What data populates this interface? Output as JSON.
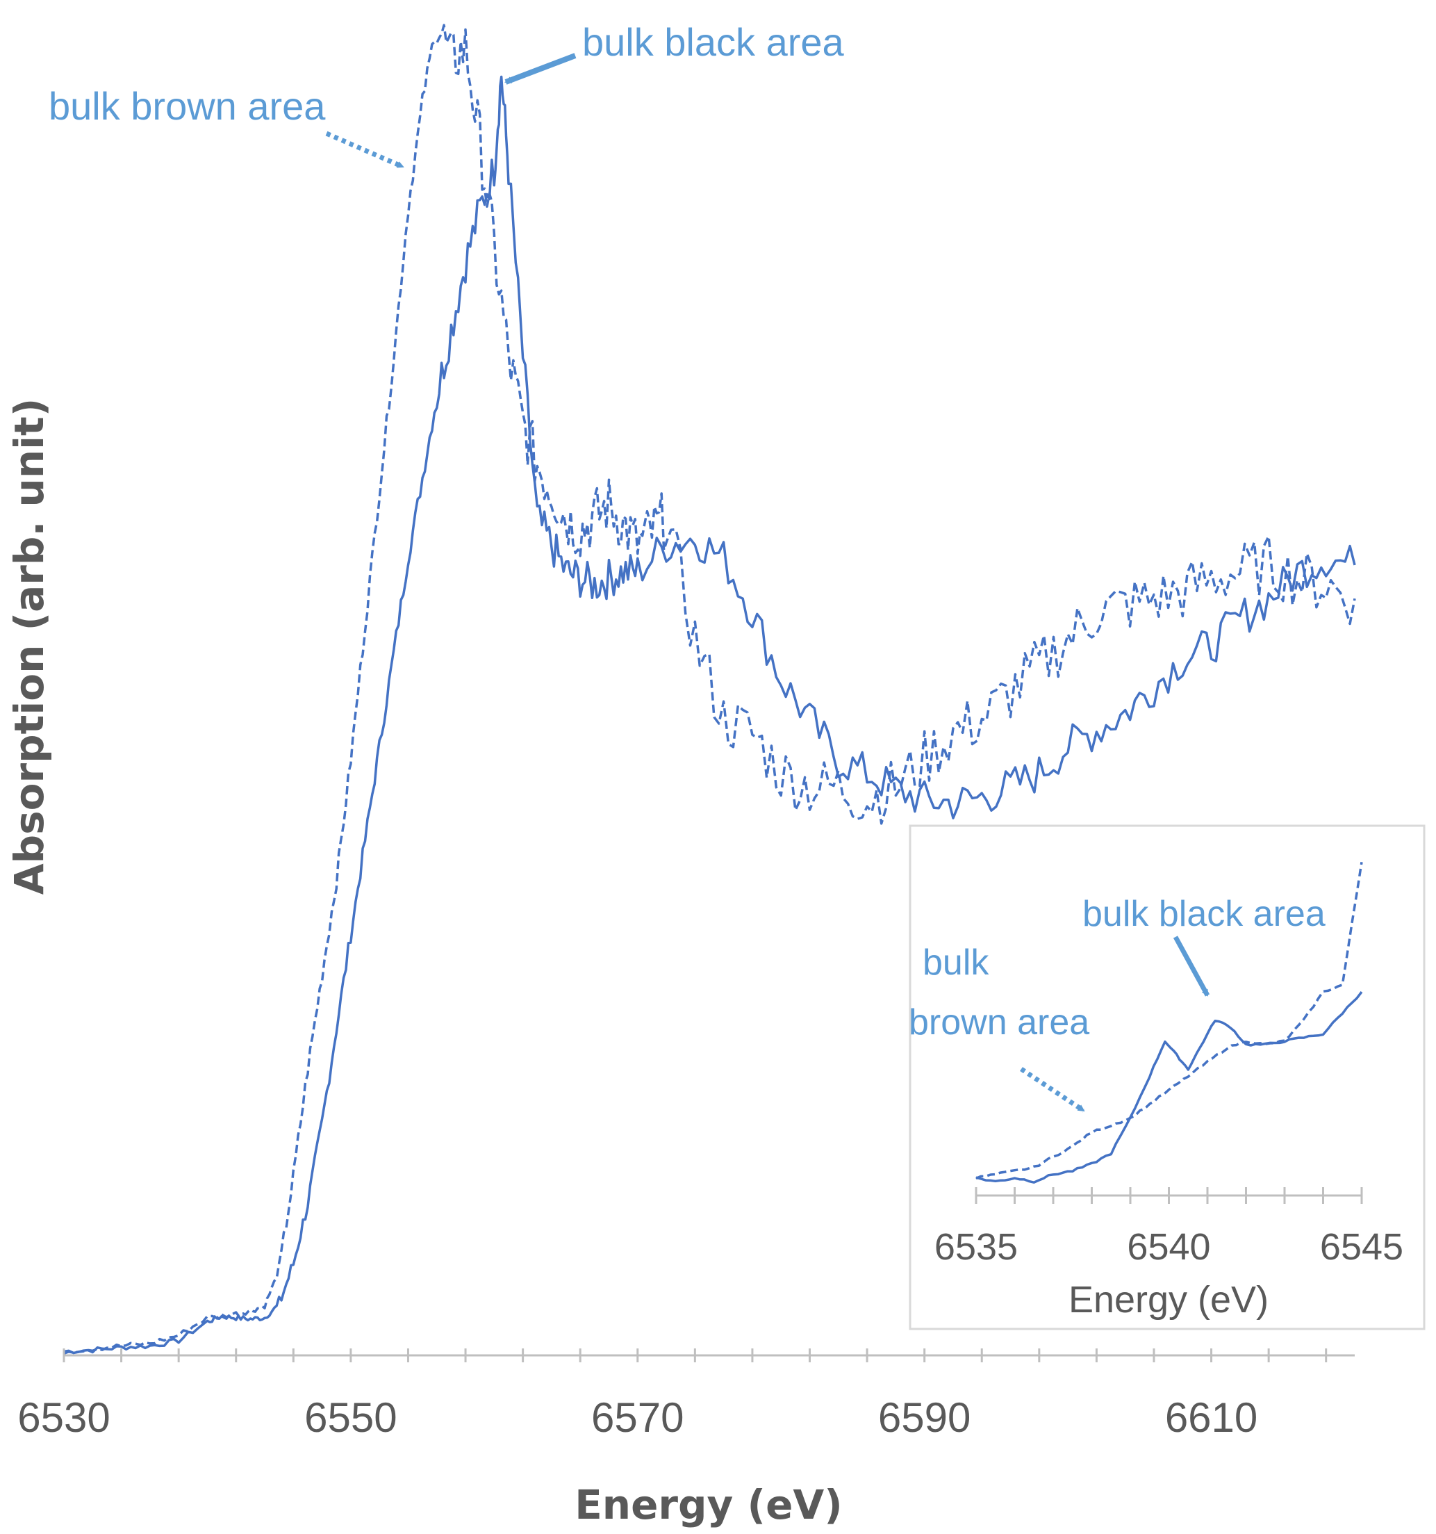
{
  "colors": {
    "series": "#4472c4",
    "annotation": "#5b9bd5",
    "axis": "#bfbfbf",
    "text": "#595959",
    "inset_border": "#d9d9d9"
  },
  "chart_data": [
    {
      "type": "line",
      "title": "",
      "xlabel": "Energy (eV)",
      "ylabel": "Absorption (arb. unit)",
      "xlim": [
        6530,
        6620
      ],
      "ylim": [
        0,
        1.0
      ],
      "x_ticks": [
        6530,
        6550,
        6570,
        6590,
        6610
      ],
      "y_ticks": [],
      "legend": "none",
      "grid": false,
      "series": [
        {
          "name": "bulk black area",
          "style": "solid",
          "x": [
            6530,
            6532,
            6534,
            6536,
            6538,
            6540,
            6541,
            6542,
            6543,
            6544,
            6545,
            6546,
            6547,
            6548,
            6549,
            6550,
            6551,
            6552,
            6553,
            6554,
            6555,
            6556,
            6557,
            6558,
            6559,
            6560,
            6560.5,
            6561,
            6562,
            6563,
            6564,
            6565,
            6566,
            6567,
            6568,
            6569,
            6570,
            6572,
            6574,
            6576,
            6578,
            6580,
            6582,
            6584,
            6586,
            6588,
            6590,
            6592,
            6594,
            6596,
            6598,
            6600,
            6602,
            6604,
            6606,
            6608,
            6610,
            6612,
            6614,
            6616,
            6618,
            6620
          ],
          "y": [
            0.0,
            0.001,
            0.003,
            0.004,
            0.008,
            0.022,
            0.026,
            0.025,
            0.024,
            0.025,
            0.035,
            0.065,
            0.11,
            0.17,
            0.24,
            0.31,
            0.38,
            0.45,
            0.52,
            0.59,
            0.65,
            0.71,
            0.76,
            0.81,
            0.85,
            0.88,
            0.95,
            0.88,
            0.74,
            0.62,
            0.6,
            0.58,
            0.575,
            0.57,
            0.575,
            0.58,
            0.58,
            0.6,
            0.605,
            0.59,
            0.55,
            0.5,
            0.47,
            0.44,
            0.43,
            0.418,
            0.41,
            0.408,
            0.412,
            0.42,
            0.43,
            0.45,
            0.462,
            0.475,
            0.495,
            0.515,
            0.525,
            0.545,
            0.56,
            0.58,
            0.59,
            0.585
          ]
        },
        {
          "name": "bulk brown area",
          "style": "dashed",
          "x": [
            6530,
            6532,
            6534,
            6536,
            6538,
            6540,
            6542,
            6543,
            6544,
            6545,
            6546,
            6547,
            6548,
            6549,
            6550,
            6551,
            6552,
            6553,
            6554,
            6555,
            6556,
            6557,
            6558,
            6559,
            6560,
            6561,
            6562,
            6563,
            6564,
            6565,
            6566,
            6567,
            6568,
            6569,
            6570,
            6571,
            6572,
            6574,
            6576,
            6578,
            6580,
            6582,
            6584,
            6586,
            6588,
            6590,
            6592,
            6594,
            6596,
            6598,
            6600,
            6602,
            6604,
            6606,
            6608,
            6610,
            6612,
            6614,
            6616,
            6618,
            6620
          ],
          "y": [
            0.0,
            0.002,
            0.004,
            0.006,
            0.012,
            0.025,
            0.028,
            0.03,
            0.034,
            0.06,
            0.13,
            0.21,
            0.28,
            0.35,
            0.44,
            0.54,
            0.64,
            0.74,
            0.85,
            0.93,
            0.99,
            0.96,
            0.97,
            0.9,
            0.82,
            0.74,
            0.69,
            0.66,
            0.64,
            0.62,
            0.61,
            0.62,
            0.63,
            0.615,
            0.6,
            0.61,
            0.62,
            0.53,
            0.47,
            0.46,
            0.43,
            0.42,
            0.42,
            0.41,
            0.42,
            0.44,
            0.46,
            0.47,
            0.49,
            0.51,
            0.53,
            0.55,
            0.555,
            0.56,
            0.565,
            0.575,
            0.58,
            0.585,
            0.575,
            0.57,
            0.56
          ]
        }
      ],
      "annotations": [
        {
          "text": "bulk black area",
          "arrow": "solid"
        },
        {
          "text": "bulk brown area",
          "arrow": "dotted"
        }
      ]
    },
    {
      "type": "line",
      "title": "",
      "inset": true,
      "xlabel": "Energy (eV)",
      "ylabel": "",
      "xlim": [
        6535,
        6545
      ],
      "x_ticks": [
        6535,
        6540,
        6545
      ],
      "series": [
        {
          "name": "bulk black area",
          "style": "solid",
          "x": [
            6535,
            6535.5,
            6536,
            6536.5,
            6537,
            6537.5,
            6538,
            6538.5,
            6539,
            6539.5,
            6539.9,
            6540.2,
            6540.5,
            6540.8,
            6541.2,
            6541.6,
            6542,
            6542.5,
            6543,
            6543.5,
            6544,
            6544.5,
            6545
          ],
          "y": [
            0.05,
            0.04,
            0.05,
            0.04,
            0.06,
            0.07,
            0.09,
            0.12,
            0.22,
            0.34,
            0.44,
            0.4,
            0.36,
            0.42,
            0.5,
            0.48,
            0.43,
            0.43,
            0.44,
            0.45,
            0.46,
            0.52,
            0.58
          ]
        },
        {
          "name": "bulk brown area",
          "style": "dashed",
          "x": [
            6535,
            6535.5,
            6536,
            6536.5,
            6537,
            6537.5,
            6538,
            6538.5,
            6539,
            6539.5,
            6540,
            6540.5,
            6541,
            6541.5,
            6542,
            6542.5,
            6543,
            6543.5,
            6544,
            6544.5,
            6545
          ],
          "y": [
            0.05,
            0.06,
            0.07,
            0.08,
            0.11,
            0.14,
            0.18,
            0.2,
            0.22,
            0.26,
            0.3,
            0.34,
            0.38,
            0.42,
            0.44,
            0.43,
            0.44,
            0.5,
            0.58,
            0.6,
            0.95
          ]
        }
      ],
      "annotations": [
        {
          "text": "bulk black area",
          "arrow": "solid"
        },
        {
          "text_lines": [
            "bulk",
            "brown area"
          ],
          "arrow": "dotted"
        }
      ]
    }
  ]
}
